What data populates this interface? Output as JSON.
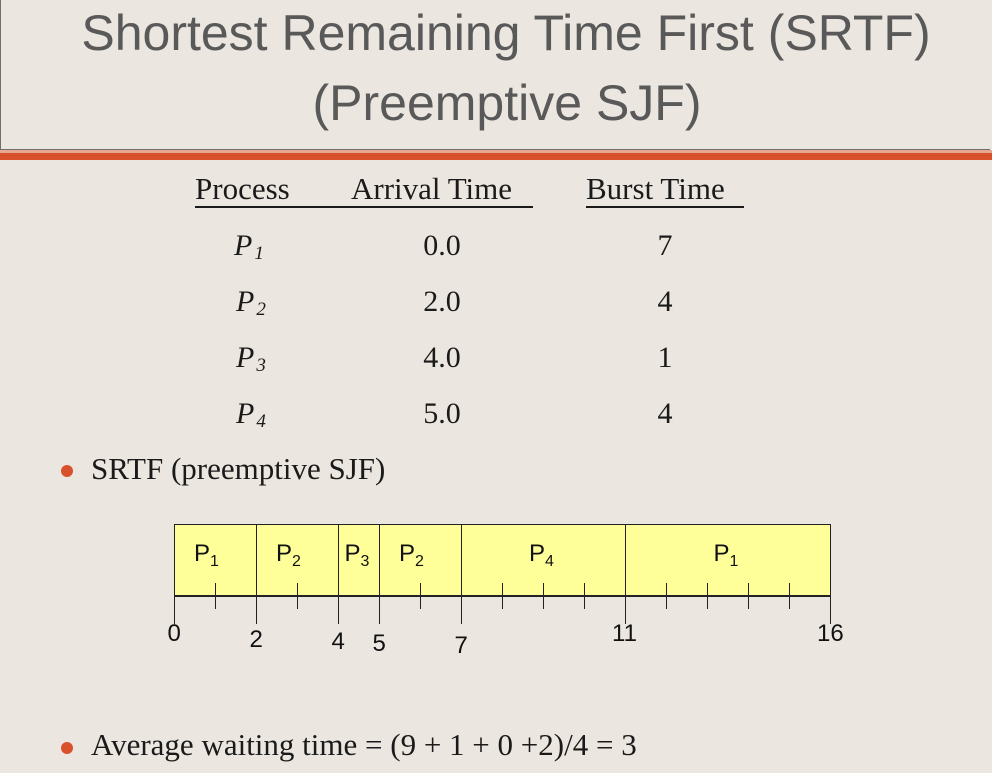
{
  "title": {
    "line1": "Shortest Remaining Time First (SRTF)",
    "line2": "(Preemptive SJF)"
  },
  "table": {
    "headers": [
      "Process",
      "Arrival Time",
      "Burst Time"
    ],
    "rows": [
      {
        "process": "P",
        "sub": "1",
        "arrival": "0.0",
        "burst": "7"
      },
      {
        "process": "P",
        "sub": "2",
        "arrival": "2.0",
        "burst": "4"
      },
      {
        "process": "P",
        "sub": "3",
        "arrival": "4.0",
        "burst": "1"
      },
      {
        "process": "P",
        "sub": "4",
        "arrival": "5.0",
        "burst": "4"
      }
    ]
  },
  "bullets": [
    "SRTF (preemptive SJF)",
    "Average waiting time = (9 + 1 + 0 +2)/4 = 3"
  ],
  "gantt": {
    "blocks": [
      {
        "label": "P",
        "sub": "1",
        "start": 0,
        "end": 2
      },
      {
        "label": "P",
        "sub": "2",
        "start": 2,
        "end": 4
      },
      {
        "label": "P",
        "sub": "3",
        "start": 4,
        "end": 5
      },
      {
        "label": "P",
        "sub": "2",
        "start": 5,
        "end": 7
      },
      {
        "label": "P",
        "sub": "4",
        "start": 7,
        "end": 11
      },
      {
        "label": "P",
        "sub": "1",
        "start": 11,
        "end": 16
      }
    ],
    "axis_labels": [
      "0",
      "2",
      "4",
      "5",
      "7",
      "11",
      "16"
    ]
  },
  "colors": {
    "accent": "#d9512c",
    "gantt_fill": "#ffff99",
    "background": "#ebe6df"
  }
}
